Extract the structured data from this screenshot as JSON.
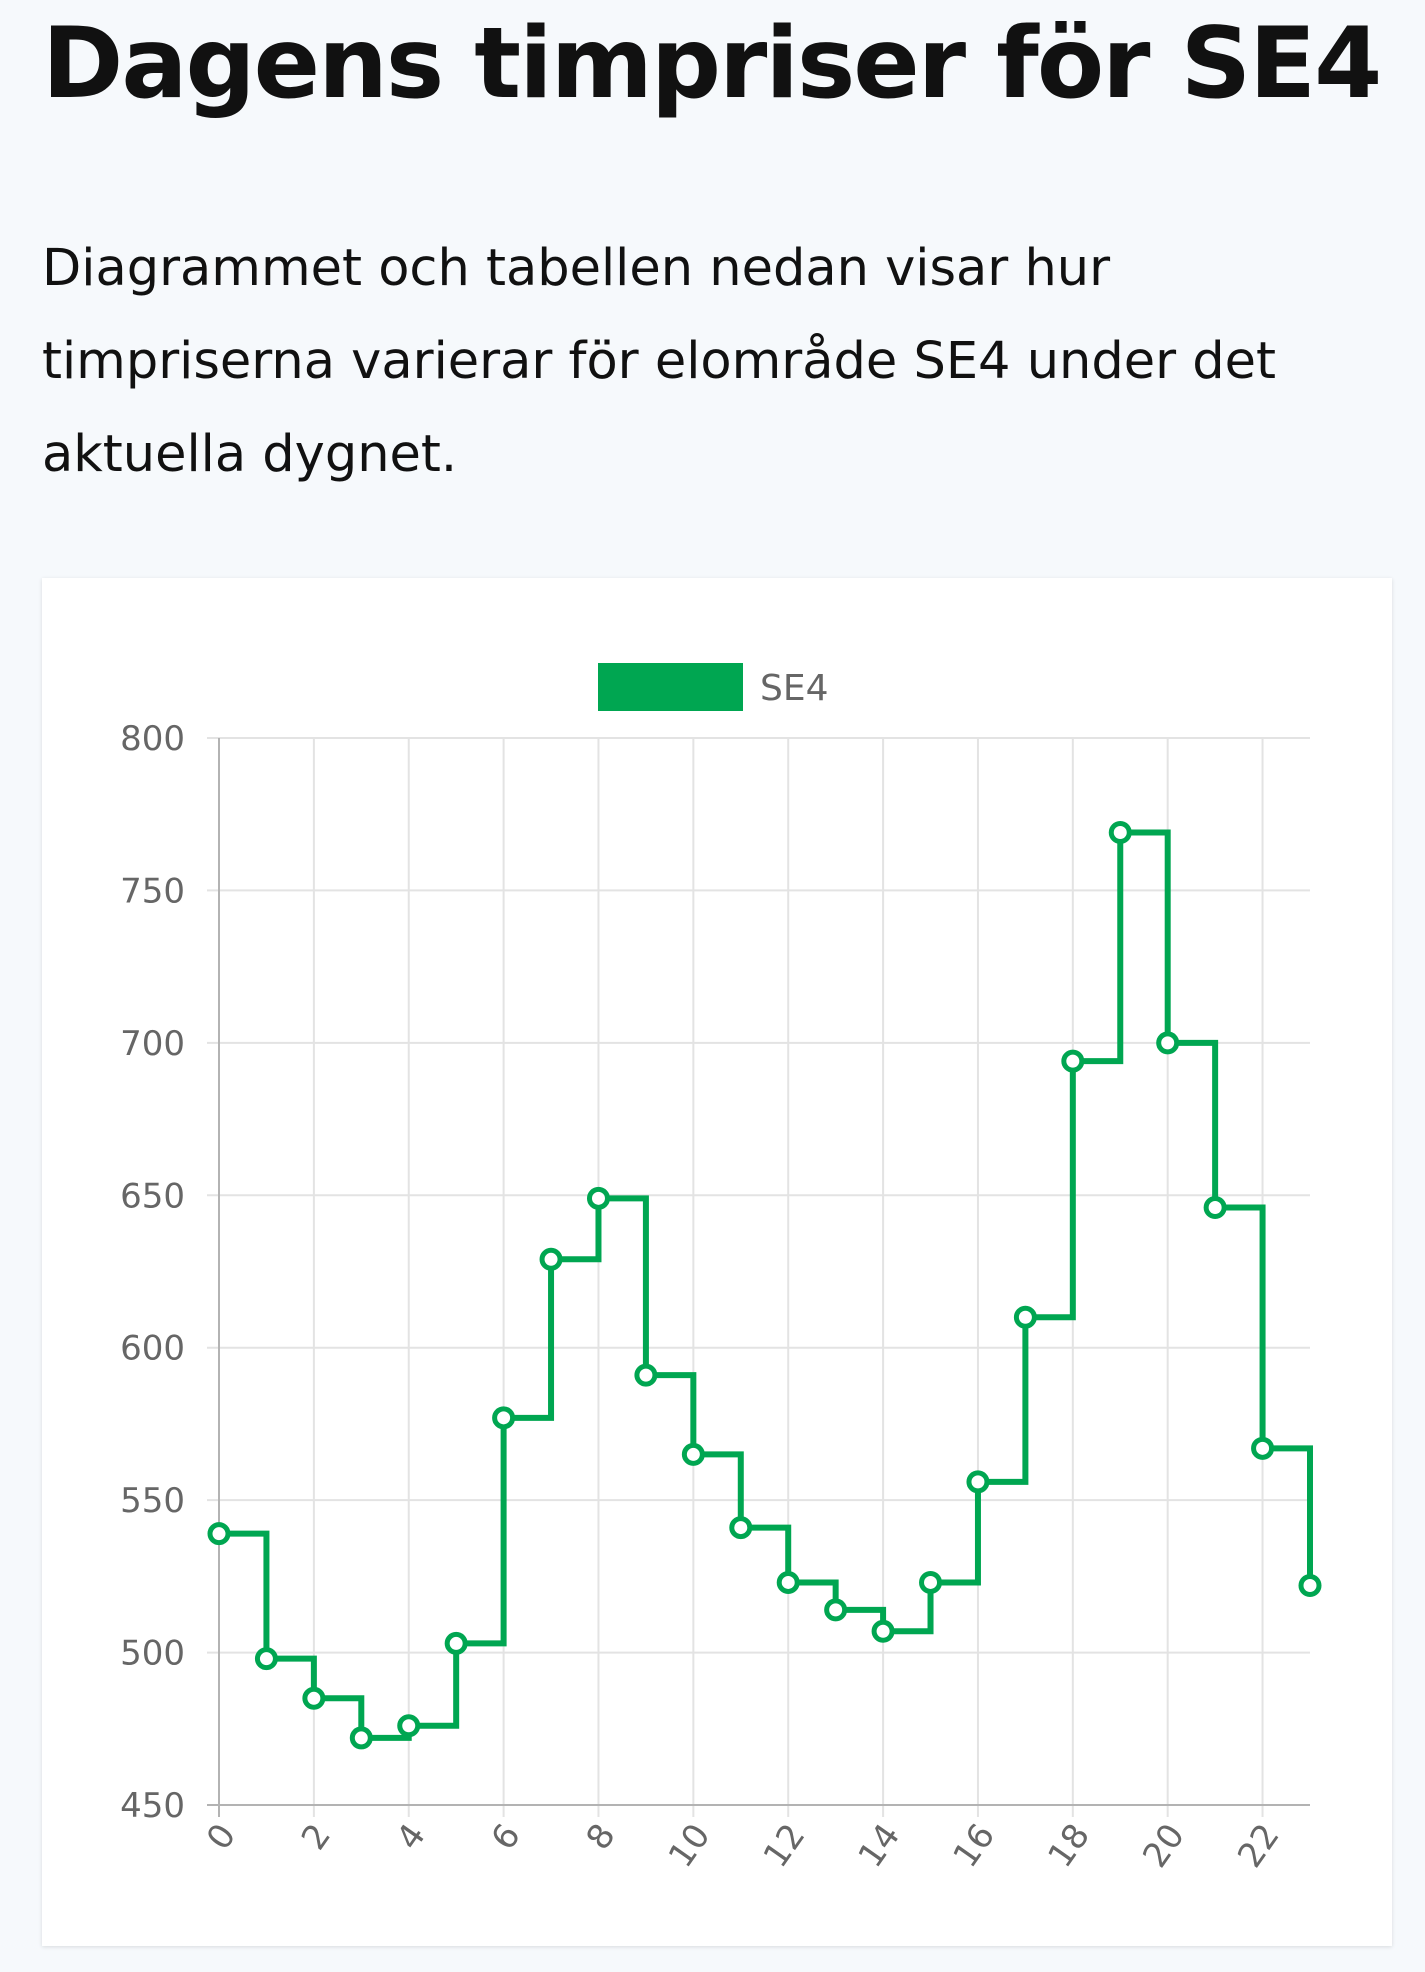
{
  "page": {
    "title": "Dagens timpriser för SE4",
    "intro": "Diagrammet och tabellen nedan visar hur timpriserna varierar för elområde SE4 under det aktuella dygnet."
  },
  "chart_data": {
    "type": "line",
    "step": "before",
    "title": "",
    "xlabel": "",
    "ylabel": "",
    "x": [
      0,
      1,
      2,
      3,
      4,
      5,
      6,
      7,
      8,
      9,
      10,
      11,
      12,
      13,
      14,
      15,
      16,
      17,
      18,
      19,
      20,
      21,
      22,
      23
    ],
    "x_tick_labels": [
      "0",
      "2",
      "4",
      "6",
      "8",
      "10",
      "12",
      "14",
      "16",
      "18",
      "20",
      "22"
    ],
    "y_tick_labels": [
      "800",
      "750",
      "700",
      "650",
      "600",
      "550",
      "500",
      "450"
    ],
    "xlim": [
      0,
      23
    ],
    "ylim": [
      450,
      800
    ],
    "grid": true,
    "legend": "top-center",
    "series": [
      {
        "name": "SE4",
        "color": "#00a651",
        "values": [
          539,
          498,
          485,
          472,
          476,
          503,
          577,
          629,
          649,
          591,
          565,
          541,
          523,
          514,
          507,
          523,
          556,
          610,
          694,
          769,
          700,
          646,
          567,
          522
        ]
      }
    ]
  }
}
